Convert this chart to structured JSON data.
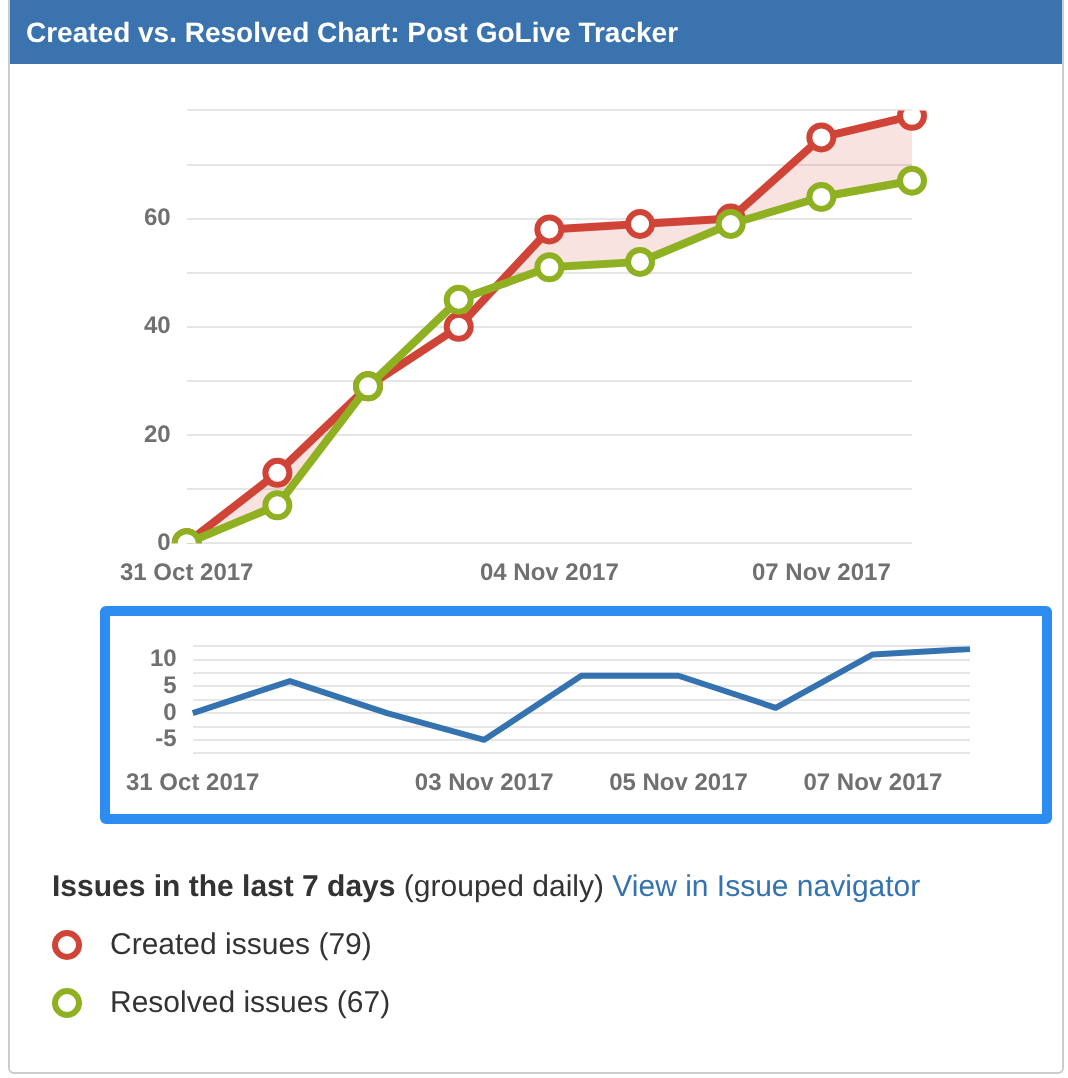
{
  "chart_data": [
    {
      "type": "line",
      "title": "Created vs. Resolved Chart: Post GoLive Tracker",
      "categories": [
        "31 Oct 2017",
        null,
        null,
        null,
        "04 Nov 2017",
        null,
        null,
        "07 Nov 2017",
        null
      ],
      "series": [
        {
          "name": "Created issues (79)",
          "color": "#d04437",
          "values": [
            0,
            13,
            29,
            40,
            58,
            59,
            60,
            75,
            79
          ]
        },
        {
          "name": "Resolved issues (67)",
          "color": "#8eb021",
          "values": [
            0,
            7,
            29,
            45,
            51,
            52,
            59,
            64,
            67
          ]
        }
      ],
      "ylim": [
        0,
        80
      ],
      "yticks": [
        0,
        {
          "value": 10,
          "label": null
        },
        20,
        {
          "value": 30,
          "label": null
        },
        40,
        {
          "value": 50,
          "label": null
        },
        60,
        {
          "value": 70,
          "label": null
        },
        {
          "value": 80,
          "label": null
        }
      ],
      "grid": "y",
      "marker": "circle",
      "legend": "bottom",
      "annotations": [
        "Issues in the last 7 days",
        "(grouped daily)",
        "View in Issue navigator"
      ]
    },
    {
      "type": "line",
      "categories": [
        "31 Oct 2017",
        null,
        null,
        "03 Nov 2017",
        null,
        "05 Nov 2017",
        null,
        "07 Nov 2017",
        null
      ],
      "series": [
        {
          "color": "#3572b0",
          "values": [
            0,
            6,
            0,
            -5,
            7,
            7,
            1,
            11,
            12
          ]
        }
      ],
      "ylim": [
        -7.5,
        12.5
      ],
      "yticks": [
        {
          "value": -7.5,
          "label": null
        },
        -5,
        {
          "value": -2.5,
          "label": null
        },
        0,
        {
          "value": 2.5,
          "label": null
        },
        5,
        {
          "value": 7.5,
          "label": null
        },
        10,
        {
          "value": 12.5,
          "label": null
        }
      ],
      "grid": "y",
      "marker": "none"
    }
  ]
}
